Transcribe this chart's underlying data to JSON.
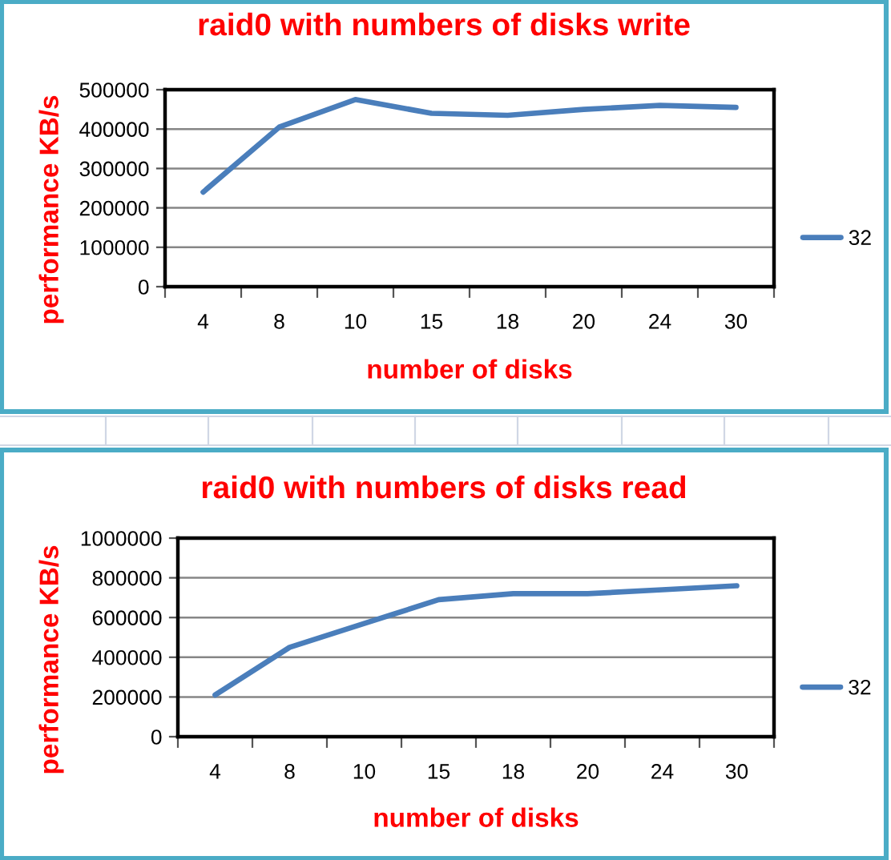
{
  "chart_data": [
    {
      "type": "line",
      "title": "raid0 with numbers of disks write",
      "xlabel": "number of disks",
      "ylabel": "performance KB/s",
      "categories": [
        "4",
        "8",
        "10",
        "15",
        "18",
        "20",
        "24",
        "30"
      ],
      "series": [
        {
          "name": "32",
          "color": "#4a7ebb",
          "values": [
            240000,
            405000,
            475000,
            440000,
            435000,
            450000,
            460000,
            455000
          ]
        }
      ],
      "ylim": [
        0,
        500000
      ],
      "yticks": [
        0,
        100000,
        200000,
        300000,
        400000,
        500000
      ],
      "grid": "y",
      "legend": "right"
    },
    {
      "type": "line",
      "title": "raid0 with numbers of disks read",
      "xlabel": "number of disks",
      "ylabel": "performance KB/s",
      "categories": [
        "4",
        "8",
        "10",
        "15",
        "18",
        "20",
        "24",
        "30"
      ],
      "series": [
        {
          "name": "32",
          "color": "#4a7ebb",
          "values": [
            210000,
            450000,
            570000,
            690000,
            720000,
            720000,
            740000,
            760000
          ]
        }
      ],
      "ylim": [
        0,
        1000000
      ],
      "yticks": [
        0,
        200000,
        400000,
        600000,
        800000,
        1000000
      ],
      "grid": "y",
      "legend": "right"
    }
  ]
}
